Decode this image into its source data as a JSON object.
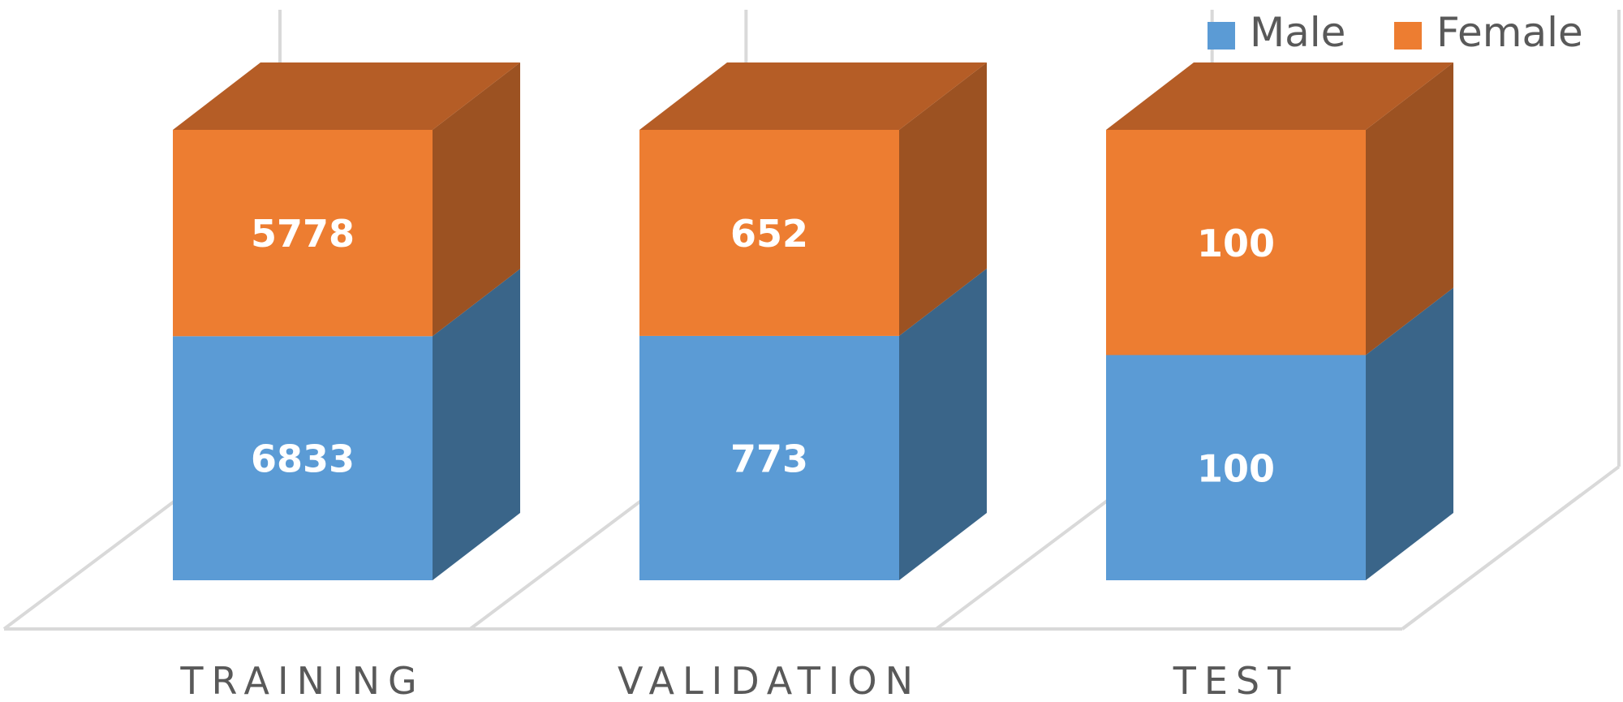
{
  "chart_data": {
    "type": "bar",
    "stacked": true,
    "three_d": true,
    "categories": [
      "TRAINING",
      "VALIDATION",
      "TEST"
    ],
    "series": [
      {
        "name": "Male",
        "values": [
          6833,
          773,
          100
        ],
        "color": "#5b9bd5",
        "side_color": "#3a6589"
      },
      {
        "name": "Female",
        "values": [
          5778,
          652,
          100
        ],
        "color": "#ed7d31",
        "side_color": "#9c5222",
        "top_color": "#b55d26"
      }
    ],
    "percent_stacked": true,
    "title": "",
    "xlabel": "",
    "ylabel": "",
    "legend_position": "top-right",
    "grid": true,
    "data_labels": true
  }
}
